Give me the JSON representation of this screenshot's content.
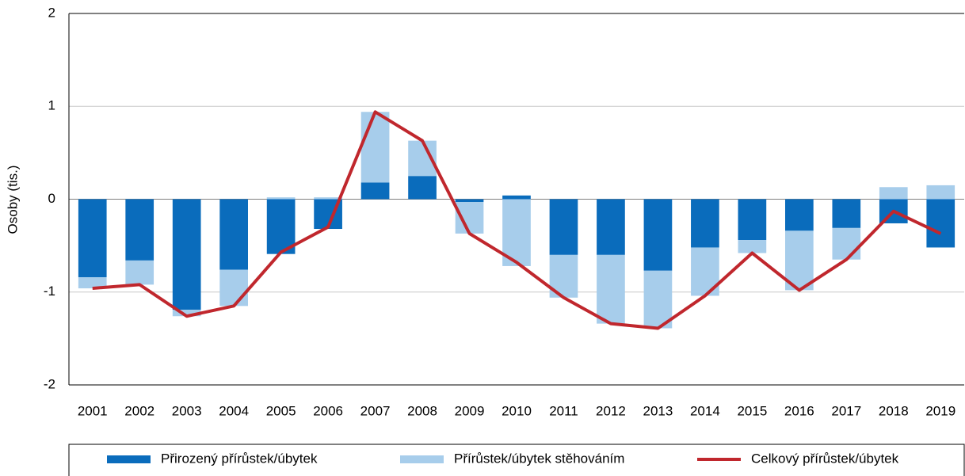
{
  "chart_data": {
    "type": "bar",
    "stacked": true,
    "y_label": "Osoby (tis.)",
    "categories": [
      "2001",
      "2002",
      "2003",
      "2004",
      "2005",
      "2006",
      "2007",
      "2008",
      "2009",
      "2010",
      "2011",
      "2012",
      "2013",
      "2014",
      "2015",
      "2016",
      "2017",
      "2018",
      "2019"
    ],
    "series": [
      {
        "name": "Přirozený přírůstek/úbytek",
        "type": "bar",
        "color": "#0a6cbc",
        "values": [
          -0.84,
          -0.66,
          -1.19,
          -0.76,
          -0.59,
          -0.32,
          0.18,
          0.25,
          -0.03,
          0.04,
          -0.6,
          -0.6,
          -0.77,
          -0.52,
          -0.44,
          -0.34,
          -0.31,
          -0.26,
          -0.52
        ]
      },
      {
        "name": "Přírůstek/úbytek stěhováním",
        "type": "bar",
        "color": "#a7cdeb",
        "values": [
          -0.12,
          -0.26,
          -0.07,
          -0.39,
          0.02,
          0.02,
          0.76,
          0.38,
          -0.34,
          -0.72,
          -0.46,
          -0.74,
          -0.62,
          -0.52,
          -0.14,
          -0.64,
          -0.34,
          0.13,
          0.15
        ]
      },
      {
        "name": "Celkový přírůstek/úbytek",
        "type": "line",
        "color": "#c0272d",
        "values": [
          -0.96,
          -0.92,
          -1.26,
          -1.15,
          -0.57,
          -0.3,
          0.94,
          0.63,
          -0.37,
          -0.68,
          -1.06,
          -1.34,
          -1.39,
          -1.04,
          -0.58,
          -0.98,
          -0.65,
          -0.13,
          -0.37
        ]
      }
    ],
    "ylim": [
      -2,
      2
    ],
    "yticks": [
      -2,
      -1,
      0,
      1,
      2
    ],
    "grid": true,
    "legend": "bottom"
  }
}
